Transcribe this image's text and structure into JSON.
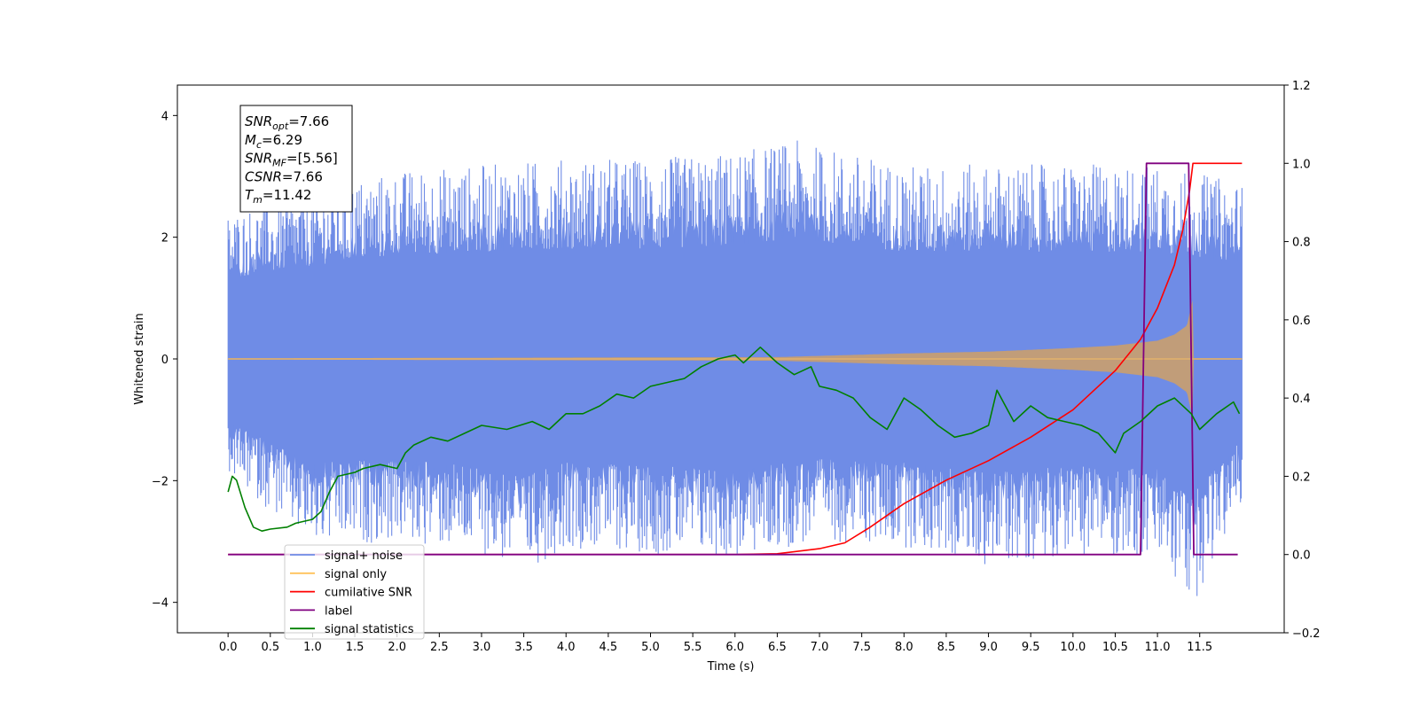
{
  "chart_data": {
    "type": "line",
    "xlabel": "Time (s)",
    "ylabel_left": "Whitened strain",
    "xlim": [
      -0.6,
      12.5
    ],
    "ylim_left": [
      -4.5,
      4.5
    ],
    "ylim_right": [
      -0.2,
      1.2
    ],
    "x_ticks": [
      "0.0",
      "0.5",
      "1.0",
      "1.5",
      "2.0",
      "2.5",
      "3.0",
      "3.5",
      "4.0",
      "4.5",
      "5.0",
      "5.5",
      "6.0",
      "6.5",
      "7.0",
      "7.5",
      "8.0",
      "8.5",
      "9.0",
      "9.5",
      "10.0",
      "10.5",
      "11.0",
      "11.5"
    ],
    "y_ticks_left": [
      "4",
      "2",
      "0",
      "−2",
      "−4"
    ],
    "y_ticks_right": [
      "1.2",
      "1.0",
      "0.8",
      "0.6",
      "0.4",
      "0.2",
      "0.0",
      "−0.2"
    ],
    "info_box": [
      {
        "main": "SNR",
        "sub": "opt",
        "rest": "=7.66"
      },
      {
        "main": "M",
        "sub": "c",
        "rest": "=6.29"
      },
      {
        "main": "SNR",
        "sub": "MF",
        "rest": "=[5.56]"
      },
      {
        "main": "CSNR",
        "sub": "",
        "rest": "=7.66"
      },
      {
        "main": "T",
        "sub": "m",
        "rest": "=11.42"
      }
    ],
    "legend": [
      {
        "name": "signal+ noise",
        "color": "#6f8ce6"
      },
      {
        "name": "signal only",
        "color": "#ffc25a"
      },
      {
        "name": "cumilative SNR",
        "color": "#ff0000"
      },
      {
        "name": "label",
        "color": "#800080"
      },
      {
        "name": "signal statistics",
        "color": "#008000"
      }
    ],
    "series": [
      {
        "name": "signal+ noise",
        "axis": "left",
        "x_range": [
          0.0,
          12.0
        ],
        "envelope_upper": [
          [
            0.0,
            2.4
          ],
          [
            0.5,
            2.6
          ],
          [
            1.0,
            2.8
          ],
          [
            2.0,
            3.1
          ],
          [
            3.0,
            3.2
          ],
          [
            4.0,
            3.3
          ],
          [
            5.0,
            3.3
          ],
          [
            6.0,
            3.4
          ],
          [
            6.7,
            3.6
          ],
          [
            8.0,
            3.2
          ],
          [
            9.0,
            3.2
          ],
          [
            10.0,
            3.2
          ],
          [
            11.0,
            3.2
          ],
          [
            12.0,
            2.9
          ]
        ],
        "envelope_lower": [
          [
            0.0,
            -1.9
          ],
          [
            0.5,
            -2.5
          ],
          [
            1.0,
            -3.1
          ],
          [
            2.0,
            -3.0
          ],
          [
            3.0,
            -3.2
          ],
          [
            3.5,
            -3.5
          ],
          [
            4.0,
            -3.1
          ],
          [
            5.0,
            -3.2
          ],
          [
            6.0,
            -3.3
          ],
          [
            7.0,
            -3.0
          ],
          [
            8.0,
            -3.1
          ],
          [
            9.0,
            -3.4
          ],
          [
            10.0,
            -3.2
          ],
          [
            11.0,
            -3.3
          ],
          [
            11.4,
            -4.1
          ],
          [
            12.0,
            -2.4
          ]
        ]
      },
      {
        "name": "signal only",
        "axis": "left",
        "x_range": [
          0.0,
          12.0
        ],
        "envelope": [
          [
            0.0,
            0.01
          ],
          [
            6.5,
            0.03
          ],
          [
            7.0,
            0.05
          ],
          [
            8.0,
            0.09
          ],
          [
            9.0,
            0.12
          ],
          [
            10.0,
            0.18
          ],
          [
            10.5,
            0.22
          ],
          [
            11.0,
            0.3
          ],
          [
            11.2,
            0.4
          ],
          [
            11.35,
            0.55
          ],
          [
            11.42,
            1.0
          ],
          [
            11.43,
            0.01
          ],
          [
            12.0,
            0.01
          ]
        ]
      },
      {
        "name": "cumilative SNR",
        "axis": "right",
        "points": [
          [
            0.0,
            0.0
          ],
          [
            6.0,
            0.0
          ],
          [
            6.5,
            0.002
          ],
          [
            7.0,
            0.015
          ],
          [
            7.3,
            0.03
          ],
          [
            7.6,
            0.07
          ],
          [
            8.0,
            0.13
          ],
          [
            8.5,
            0.19
          ],
          [
            9.0,
            0.24
          ],
          [
            9.5,
            0.3
          ],
          [
            10.0,
            0.37
          ],
          [
            10.5,
            0.47
          ],
          [
            10.8,
            0.55
          ],
          [
            11.0,
            0.63
          ],
          [
            11.2,
            0.74
          ],
          [
            11.3,
            0.83
          ],
          [
            11.38,
            0.93
          ],
          [
            11.42,
            1.0
          ],
          [
            12.0,
            1.0
          ]
        ]
      },
      {
        "name": "label",
        "axis": "right",
        "points": [
          [
            0.0,
            0.0
          ],
          [
            10.8,
            0.0
          ],
          [
            10.87,
            1.0
          ],
          [
            11.37,
            1.0
          ],
          [
            11.43,
            0.0
          ],
          [
            11.95,
            0.0
          ]
        ]
      },
      {
        "name": "signal statistics",
        "axis": "right",
        "points": [
          [
            0.0,
            0.16
          ],
          [
            0.05,
            0.2
          ],
          [
            0.1,
            0.19
          ],
          [
            0.2,
            0.12
          ],
          [
            0.3,
            0.07
          ],
          [
            0.4,
            0.06
          ],
          [
            0.5,
            0.065
          ],
          [
            0.7,
            0.07
          ],
          [
            0.8,
            0.08
          ],
          [
            1.0,
            0.09
          ],
          [
            1.1,
            0.11
          ],
          [
            1.2,
            0.16
          ],
          [
            1.3,
            0.2
          ],
          [
            1.5,
            0.21
          ],
          [
            1.6,
            0.22
          ],
          [
            1.8,
            0.23
          ],
          [
            2.0,
            0.22
          ],
          [
            2.1,
            0.26
          ],
          [
            2.2,
            0.28
          ],
          [
            2.4,
            0.3
          ],
          [
            2.6,
            0.29
          ],
          [
            2.8,
            0.31
          ],
          [
            3.0,
            0.33
          ],
          [
            3.3,
            0.32
          ],
          [
            3.6,
            0.34
          ],
          [
            3.8,
            0.32
          ],
          [
            4.0,
            0.36
          ],
          [
            4.2,
            0.36
          ],
          [
            4.4,
            0.38
          ],
          [
            4.6,
            0.41
          ],
          [
            4.8,
            0.4
          ],
          [
            5.0,
            0.43
          ],
          [
            5.2,
            0.44
          ],
          [
            5.4,
            0.45
          ],
          [
            5.6,
            0.48
          ],
          [
            5.8,
            0.5
          ],
          [
            6.0,
            0.51
          ],
          [
            6.1,
            0.49
          ],
          [
            6.3,
            0.53
          ],
          [
            6.5,
            0.49
          ],
          [
            6.7,
            0.46
          ],
          [
            6.9,
            0.48
          ],
          [
            7.0,
            0.43
          ],
          [
            7.2,
            0.42
          ],
          [
            7.4,
            0.4
          ],
          [
            7.6,
            0.35
          ],
          [
            7.8,
            0.32
          ],
          [
            8.0,
            0.4
          ],
          [
            8.2,
            0.37
          ],
          [
            8.4,
            0.33
          ],
          [
            8.6,
            0.3
          ],
          [
            8.8,
            0.31
          ],
          [
            9.0,
            0.33
          ],
          [
            9.1,
            0.42
          ],
          [
            9.3,
            0.34
          ],
          [
            9.5,
            0.38
          ],
          [
            9.7,
            0.35
          ],
          [
            9.9,
            0.34
          ],
          [
            10.1,
            0.33
          ],
          [
            10.3,
            0.31
          ],
          [
            10.5,
            0.26
          ],
          [
            10.6,
            0.31
          ],
          [
            10.8,
            0.34
          ],
          [
            11.0,
            0.38
          ],
          [
            11.2,
            0.4
          ],
          [
            11.4,
            0.36
          ],
          [
            11.5,
            0.32
          ],
          [
            11.7,
            0.36
          ],
          [
            11.9,
            0.39
          ],
          [
            11.97,
            0.36
          ]
        ]
      }
    ]
  }
}
